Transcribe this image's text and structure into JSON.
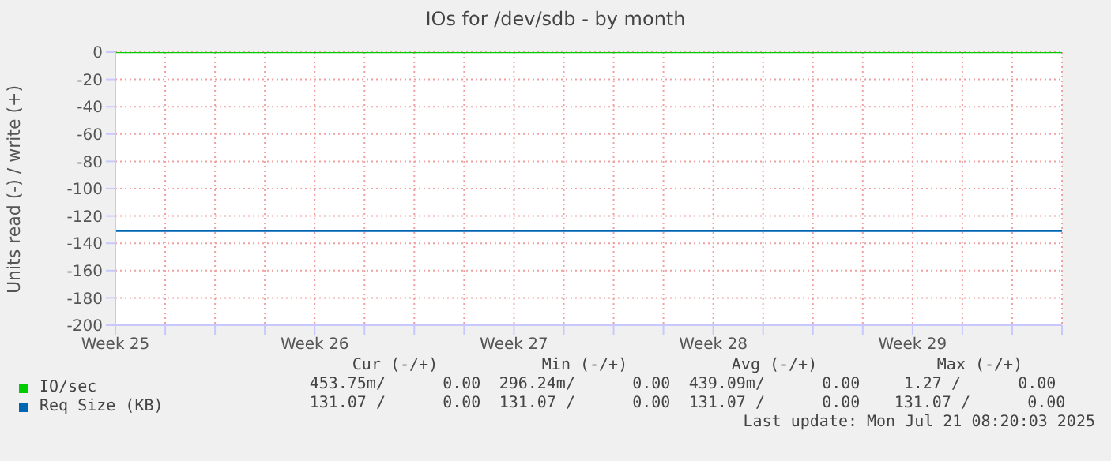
{
  "chart_data": {
    "type": "line",
    "title": "IOs for /dev/sdb - by month",
    "ylabel": "Units read (-) / write (+)",
    "categories": [
      "Week 25",
      null,
      null,
      null,
      "Week 26",
      null,
      null,
      null,
      "Week 27",
      null,
      null,
      null,
      "Week 28",
      null,
      null,
      null,
      "Week 29",
      null,
      null,
      null
    ],
    "series": [
      {
        "name": "IO/sec",
        "color": "#00cc00",
        "values": [
          0,
          0,
          0,
          0,
          0,
          0,
          0,
          0,
          0,
          0,
          0,
          0,
          0,
          0,
          0,
          0,
          0,
          0,
          0,
          0
        ]
      },
      {
        "name": "Req Size (KB)",
        "color": "#0066b3",
        "values": [
          -131,
          -131,
          -131,
          -131,
          -131,
          -131,
          -131,
          -131,
          -131,
          -131,
          -131,
          -131,
          -131,
          -131,
          -131,
          -131,
          -131,
          -131,
          -131,
          -131
        ]
      }
    ],
    "ylim": [
      -200,
      0
    ],
    "yticks": [
      0,
      -20,
      -40,
      -60,
      -80,
      -100,
      -120,
      -140,
      -160,
      -180,
      -200
    ],
    "grid": true,
    "legend": "bottom",
    "marker": "none",
    "line_style": "solid",
    "annotations": [
      "Cur (-/+)",
      "Min (-/+)",
      "Avg (-/+)",
      "Max (-/+)",
      "453.75m/      0.00",
      "296.24m/      0.00",
      "439.09m/      0.00",
      "1.27 /      0.00",
      "131.07 /      0.00",
      "131.07 /      0.00",
      "131.07 /      0.00",
      "131.07 /      0.00",
      "Last update: Mon Jul 21 08:20:03 2025"
    ]
  }
}
